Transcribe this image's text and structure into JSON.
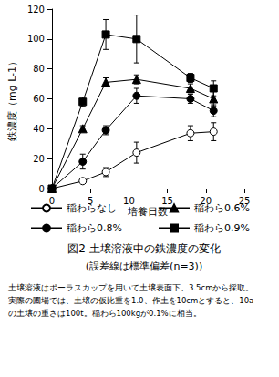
{
  "chart_data": {
    "type": "line",
    "title": "図2 土壌溶液中の鉄濃度の変化",
    "subtitle": "(誤差線は標準偏差(n=3))",
    "notes": [
      "土壌溶液はポーラスカップを用いて土壌表面下、3.5cmから採取。",
      "実際の圃場では、土壌の仮比重を1.0、作土を10cmとすると、10a",
      "の土壌の重さは100t。稲わら100kgが0.1%に相当。"
    ],
    "x_label": "培養日数",
    "y_label": "鉄濃度（mg L-1）",
    "x": [
      0,
      4,
      7,
      11,
      18,
      21
    ],
    "xlim": [
      0,
      25
    ],
    "xticks": [
      0,
      5,
      10,
      15,
      20,
      25
    ],
    "ylim": [
      0,
      120
    ],
    "yticks": [
      0,
      20,
      40,
      60,
      80,
      100,
      120
    ],
    "grid": false,
    "legend": "bottom",
    "series": [
      {
        "name": "稲わらなし",
        "color": "#000000",
        "marker": "circle-open",
        "values": [
          0,
          5,
          11,
          24,
          37,
          38
        ],
        "errors": [
          0,
          1,
          3,
          7,
          5,
          6
        ]
      },
      {
        "name": "稲わら0.6%",
        "color": "#000000",
        "marker": "triangle",
        "values": [
          0,
          40,
          71,
          73,
          67,
          60
        ],
        "errors": [
          0,
          2,
          3,
          3,
          3,
          5
        ]
      },
      {
        "name": "稲わら0.8%",
        "color": "#000000",
        "marker": "circle",
        "values": [
          0,
          18,
          39,
          62,
          60,
          52
        ],
        "errors": [
          0,
          5,
          3,
          5,
          3,
          4
        ]
      },
      {
        "name": "稲わら0.9%",
        "color": "#000000",
        "marker": "square",
        "values": [
          0,
          58,
          103,
          100,
          74,
          67
        ],
        "errors": [
          0,
          3,
          10,
          16,
          3,
          5
        ]
      }
    ]
  }
}
